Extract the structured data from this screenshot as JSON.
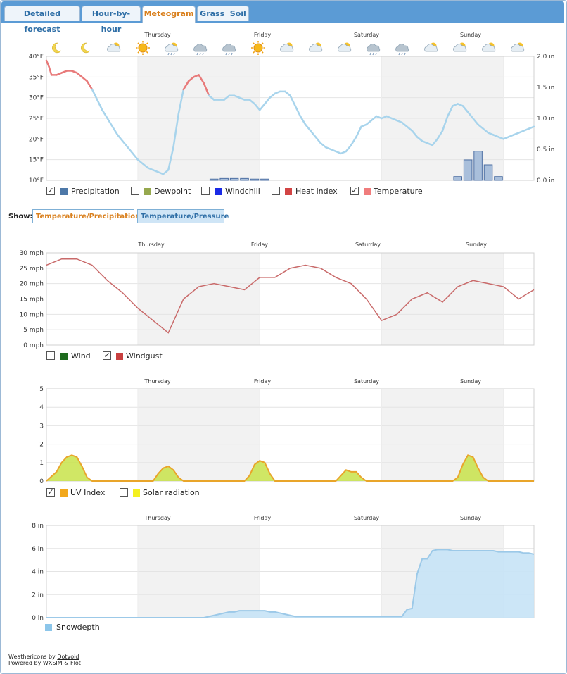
{
  "tabs": [
    {
      "label": "Detailed forecast",
      "active": false
    },
    {
      "label": "Hour-by-hour",
      "active": false
    },
    {
      "label": "Meteogram",
      "active": true
    },
    {
      "label": "Grass  Soil",
      "active": false
    }
  ],
  "days": [
    "Thursday",
    "Friday",
    "Saturday",
    "Sunday"
  ],
  "weather_icons": [
    "moon-icon",
    "moon-icon",
    "partly-cloudy-icon",
    "sun-icon",
    "cloud-sun-icon",
    "cloud-rain-icon",
    "cloud-rain-icon",
    "sun-icon",
    "partly-cloudy-icon",
    "partly-cloudy-icon",
    "partly-cloudy-icon",
    "cloud-snow-icon",
    "cloud-snow-icon",
    "partly-cloudy-icon",
    "partly-cloudy-icon",
    "sun-cloud-icon",
    "partly-cloudy-icon"
  ],
  "colors": {
    "temperature": "#e87a7a",
    "temperature_cold": "#a8d4ec",
    "precip_fill": "#a9bfdb",
    "precip_edge": "#4d6fa3",
    "windgust": "#c96a6a",
    "uv_fill": "#c8e34a",
    "uv_line": "#e9a52a",
    "snow_fill": "#c6e3f6",
    "snow_line": "#9cc9e8",
    "night": "#f2f2f2",
    "tab_bar": "#5b9bd5"
  },
  "temp_legend": [
    {
      "label": "Precipitation",
      "checked": true,
      "color": "#4d78a8"
    },
    {
      "label": "Dewpoint",
      "checked": false,
      "color": "#96a84e"
    },
    {
      "label": "Windchill",
      "checked": false,
      "color": "#1a2ae6"
    },
    {
      "label": "Heat index",
      "checked": false,
      "color": "#d24444"
    },
    {
      "label": "Temperature",
      "checked": true,
      "color": "#f07c7c"
    }
  ],
  "show": {
    "label": "Show:",
    "buttons": [
      "Temperature/Precipitation",
      "Temperature/Pressure"
    ]
  },
  "wind_legend": [
    {
      "label": "Wind",
      "checked": false,
      "color": "#1e6b1e"
    },
    {
      "label": "Windgust",
      "checked": true,
      "color": "#c84040"
    }
  ],
  "uv_legend": [
    {
      "label": "UV Index",
      "checked": true,
      "color": "#f2a81c"
    },
    {
      "label": "Solar radiation",
      "checked": false,
      "color": "#f4f020"
    }
  ],
  "snow_legend": [
    {
      "label": "Snowdepth",
      "color": "#8cc6ea"
    }
  ],
  "credits": {
    "weathericons_prefix": "Weathericons by",
    "weathericons_link": "Dotvoid",
    "powered_prefix": "Powered by",
    "wxsim_link": "WXSIM",
    "amp": "&",
    "flot_link": "Flot"
  },
  "chart_data": [
    {
      "type": "line",
      "title": "Temperature / Precipitation",
      "x_range": [
        0,
        96
      ],
      "night_bands": [
        [
          18,
          42
        ],
        [
          66,
          90
        ]
      ],
      "day_ticks": [
        {
          "label": "Thursday",
          "x": 30
        },
        {
          "label": "Friday",
          "x": 54
        },
        {
          "label": "Saturday",
          "x": 78
        },
        {
          "label": "Sunday",
          "x": 102
        }
      ],
      "ylim": [
        10,
        40
      ],
      "yticks": [
        "10°F",
        "15°F",
        "20°F",
        "25°F",
        "30°F",
        "35°F",
        "40°F"
      ],
      "y2lim": [
        0,
        2.0
      ],
      "y2ticks": [
        "0.0 in",
        "0.5 in",
        "1.0 in",
        "1.5 in",
        "2.0 in"
      ],
      "temperature": {
        "name": "Temperature",
        "x": [
          0,
          0.5,
          1,
          2,
          3,
          4,
          5,
          6,
          7,
          8,
          9,
          10,
          11,
          12,
          13,
          14,
          15,
          16,
          17,
          18,
          19,
          20,
          21,
          22,
          23,
          24,
          25,
          26,
          27,
          28,
          29,
          30,
          31,
          32,
          33,
          34,
          35,
          36,
          37,
          38,
          39,
          40,
          41,
          42,
          43,
          44,
          45,
          46,
          47,
          48,
          49,
          50,
          51,
          52,
          53,
          54,
          55,
          56,
          57,
          58,
          59,
          60,
          61,
          62,
          63,
          64,
          65,
          66,
          67,
          68,
          69,
          70,
          71,
          72,
          73,
          74,
          75,
          76,
          77,
          78,
          79,
          80,
          81,
          82,
          83,
          84,
          85,
          86,
          87,
          88,
          89,
          90,
          91,
          92,
          93,
          94,
          95,
          96
        ],
        "values": [
          39,
          37.5,
          35.5,
          35.5,
          36,
          36.5,
          36.5,
          36,
          35,
          34,
          32,
          29.5,
          27,
          25,
          23,
          21,
          19.5,
          18,
          16.5,
          15,
          14,
          13,
          12.5,
          12,
          11.5,
          12.5,
          18,
          26,
          32,
          34,
          35,
          35.5,
          33.5,
          30.5,
          29.5,
          29.5,
          29.5,
          30.5,
          30.5,
          30,
          29.5,
          29.5,
          28.5,
          27,
          28.5,
          30,
          31,
          31.5,
          31.5,
          30.5,
          28,
          25.5,
          23.5,
          22,
          20.5,
          19,
          18,
          17.5,
          17,
          16.5,
          17,
          18.5,
          20.5,
          23,
          23.5,
          24.5,
          25.5,
          25,
          25.5,
          25,
          24.5,
          24,
          23,
          22,
          20.5,
          19.5,
          19,
          18.5,
          20,
          22,
          25.5,
          28,
          28.5,
          28,
          26.5,
          25,
          23.5,
          22.5,
          21.5,
          21,
          20.5,
          20,
          20.5,
          21,
          21.5,
          22,
          22.5,
          23
        ]
      },
      "precipitation": {
        "name": "Precipitation",
        "unit": "in",
        "bars": [
          {
            "x": 33,
            "value": 0.02
          },
          {
            "x": 35,
            "value": 0.03
          },
          {
            "x": 37,
            "value": 0.03
          },
          {
            "x": 39,
            "value": 0.03
          },
          {
            "x": 41,
            "value": 0.02
          },
          {
            "x": 43,
            "value": 0.02
          },
          {
            "x": 81,
            "value": 0.06
          },
          {
            "x": 83,
            "value": 0.33
          },
          {
            "x": 85,
            "value": 0.47
          },
          {
            "x": 87,
            "value": 0.25
          },
          {
            "x": 89,
            "value": 0.06
          }
        ]
      }
    },
    {
      "type": "line",
      "title": "Windgust",
      "x_range": [
        0,
        96
      ],
      "night_bands": [
        [
          18,
          42
        ],
        [
          66,
          90
        ]
      ],
      "ylim": [
        0,
        30
      ],
      "yticks": [
        "0 mph",
        "5 mph",
        "10 mph",
        "15 mph",
        "20 mph",
        "25 mph",
        "30 mph"
      ],
      "series": [
        {
          "name": "Windgust",
          "x": [
            0,
            3,
            6,
            9,
            12,
            15,
            18,
            21,
            24,
            27,
            30,
            33,
            36,
            39,
            42,
            45,
            48,
            51,
            54,
            57,
            60,
            63,
            66,
            69,
            72,
            75,
            78,
            81,
            84,
            87,
            90,
            93,
            96
          ],
          "values": [
            26,
            28,
            28,
            26,
            21,
            17,
            12,
            8,
            4,
            15,
            19,
            20,
            19,
            18,
            22,
            22,
            25,
            26,
            25,
            22,
            20,
            15,
            8,
            10,
            15,
            17,
            14,
            19,
            21,
            20,
            19,
            15,
            18
          ]
        }
      ]
    },
    {
      "type": "area",
      "title": "UV Index",
      "x_range": [
        0,
        96
      ],
      "night_bands": [
        [
          18,
          42
        ],
        [
          66,
          90
        ]
      ],
      "ylim": [
        0,
        5
      ],
      "yticks": [
        "0",
        "1",
        "2",
        "3",
        "4",
        "5"
      ],
      "series": [
        {
          "name": "UV Index",
          "x": [
            0,
            2,
            3,
            4,
            5,
            6,
            7,
            8,
            9,
            10,
            11,
            12,
            13,
            14,
            15,
            16,
            17,
            18,
            19,
            20,
            21,
            22,
            23,
            24,
            25,
            26,
            27,
            28,
            29,
            30,
            31,
            32,
            33,
            34,
            35,
            36,
            37,
            38,
            39,
            40,
            41,
            42,
            43,
            44,
            45,
            46,
            47,
            48,
            49,
            50,
            51,
            52,
            53,
            54,
            55,
            56,
            57,
            58,
            59,
            60,
            61,
            62,
            63,
            64,
            65,
            66,
            67,
            68,
            69,
            70,
            71,
            72,
            73,
            74,
            75,
            76,
            77,
            78,
            79,
            80,
            81,
            82,
            83,
            84,
            85,
            86,
            87,
            88,
            89,
            90,
            91,
            92,
            93,
            94,
            95,
            96
          ],
          "values": [
            0,
            0.5,
            1.0,
            1.3,
            1.4,
            1.3,
            0.8,
            0.2,
            0,
            0,
            0,
            0,
            0,
            0,
            0,
            0,
            0,
            0,
            0,
            0,
            0,
            0.4,
            0.7,
            0.8,
            0.6,
            0.2,
            0,
            0,
            0,
            0,
            0,
            0,
            0,
            0,
            0,
            0,
            0,
            0,
            0,
            0.3,
            0.9,
            1.1,
            1.0,
            0.4,
            0,
            0,
            0,
            0,
            0,
            0,
            0,
            0,
            0,
            0,
            0,
            0,
            0,
            0.3,
            0.6,
            0.5,
            0.5,
            0.2,
            0,
            0,
            0,
            0,
            0,
            0,
            0,
            0,
            0,
            0,
            0,
            0,
            0,
            0,
            0,
            0,
            0,
            0,
            0.2,
            0.9,
            1.4,
            1.3,
            0.7,
            0.2,
            0,
            0,
            0,
            0,
            0,
            0,
            0,
            0,
            0,
            0
          ]
        }
      ]
    },
    {
      "type": "area",
      "title": "Snowdepth",
      "x_range": [
        0,
        96
      ],
      "night_bands": [
        [
          18,
          42
        ],
        [
          66,
          90
        ]
      ],
      "ylim": [
        0,
        8
      ],
      "yticks": [
        "0 in",
        "2 in",
        "4 in",
        "6 in",
        "8 in"
      ],
      "series": [
        {
          "name": "Snowdepth",
          "x": [
            0,
            30,
            31,
            32,
            33,
            34,
            35,
            36,
            37,
            38,
            39,
            40,
            41,
            42,
            43,
            44,
            45,
            46,
            47,
            48,
            49,
            50,
            51,
            52,
            53,
            54,
            55,
            56,
            57,
            58,
            59,
            60,
            61,
            62,
            63,
            64,
            65,
            66,
            67,
            68,
            69,
            70,
            71,
            72,
            73,
            74,
            75,
            76,
            77,
            78,
            79,
            80,
            81,
            82,
            83,
            84,
            85,
            86,
            87,
            88,
            89,
            90,
            91,
            92,
            93,
            94,
            95,
            96
          ],
          "values": [
            0,
            0,
            0,
            0.1,
            0.2,
            0.3,
            0.4,
            0.5,
            0.5,
            0.6,
            0.6,
            0.6,
            0.6,
            0.6,
            0.6,
            0.5,
            0.5,
            0.4,
            0.3,
            0.2,
            0.1,
            0.1,
            0.1,
            0.1,
            0.1,
            0.1,
            0.1,
            0.1,
            0.1,
            0.1,
            0.1,
            0.1,
            0.1,
            0.1,
            0.1,
            0.1,
            0.1,
            0.1,
            0.1,
            0.1,
            0.1,
            0.1,
            0.7,
            0.8,
            3.8,
            5.1,
            5.1,
            5.8,
            5.9,
            5.9,
            5.9,
            5.8,
            5.8,
            5.8,
            5.8,
            5.8,
            5.8,
            5.8,
            5.8,
            5.8,
            5.7,
            5.7,
            5.7,
            5.7,
            5.7,
            5.6,
            5.6,
            5.5
          ]
        }
      ]
    }
  ]
}
